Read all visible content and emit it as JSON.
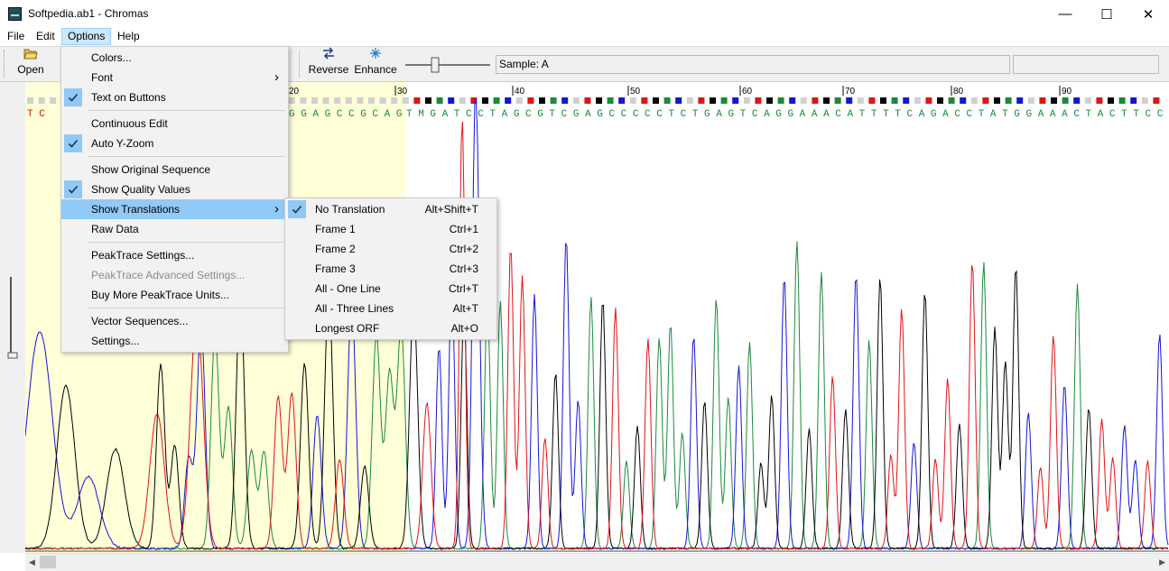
{
  "window": {
    "title": "Softpedia.ab1 - Chromas",
    "minimize": "—",
    "maximize": "☐",
    "close": "✕"
  },
  "menubar": [
    "File",
    "Edit",
    "Options",
    "Help"
  ],
  "toolbar": {
    "open_label": "Open",
    "reverse_label": "Reverse",
    "enhance_label": "Enhance",
    "sample_text": "Sample: A"
  },
  "sequence": {
    "ruler_ticks": [
      "20",
      "30",
      "40",
      "50",
      "60",
      "70",
      "80",
      "90"
    ],
    "left_bases": "T C",
    "bases_highlighted": "G G  A G  C  C G C A G",
    "bases": "T M G  A T  C C T A G  C G T C G A G  C  C C C C T C T G  A G  T  C A G G  A A A C A T T T T C A G  A C  C T A T G G  A A A C  T A C  T T  C C T G  A A A"
  },
  "options_menu": {
    "items": [
      {
        "label": "Colors...",
        "checked": false,
        "submenu": false
      },
      {
        "label": "Font",
        "checked": false,
        "submenu": true
      },
      {
        "label": "Text on Buttons",
        "checked": true,
        "submenu": false
      },
      {
        "label": "Continuous Edit",
        "checked": false,
        "submenu": false
      },
      {
        "label": "Auto Y-Zoom",
        "checked": true,
        "submenu": false
      },
      {
        "label": "Show Original Sequence",
        "checked": false,
        "submenu": false
      },
      {
        "label": "Show Quality Values",
        "checked": true,
        "submenu": false
      },
      {
        "label": "Show Translations",
        "checked": false,
        "submenu": true,
        "highlighted": true
      },
      {
        "label": "Raw Data",
        "checked": false,
        "submenu": false
      },
      {
        "label": "PeakTrace Settings...",
        "checked": false,
        "submenu": false
      },
      {
        "label": "PeakTrace Advanced Settings...",
        "checked": false,
        "submenu": false,
        "disabled": true
      },
      {
        "label": "Buy More PeakTrace Units...",
        "checked": false,
        "submenu": false
      },
      {
        "label": "Vector Sequences...",
        "checked": false,
        "submenu": false
      },
      {
        "label": "Settings...",
        "checked": false,
        "submenu": false
      }
    ]
  },
  "translations_menu": {
    "items": [
      {
        "label": "No Translation",
        "shortcut": "Alt+Shift+T",
        "checked": true
      },
      {
        "label": "Frame 1",
        "shortcut": "Ctrl+1",
        "checked": false
      },
      {
        "label": "Frame 2",
        "shortcut": "Ctrl+2",
        "checked": false
      },
      {
        "label": "Frame 3",
        "shortcut": "Ctrl+3",
        "checked": false
      },
      {
        "label": "All - One Line",
        "shortcut": "Ctrl+T",
        "checked": false
      },
      {
        "label": "All - Three Lines",
        "shortcut": "Alt+T",
        "checked": false
      },
      {
        "label": "Longest ORF",
        "shortcut": "Alt+O",
        "checked": false
      }
    ]
  },
  "colors": {
    "A": "#1a8a3c",
    "C": "#1414d8",
    "G": "#000000",
    "T": "#e01414",
    "highlight_region": "#ffffd8",
    "menu_highlight": "#91c9f7"
  }
}
